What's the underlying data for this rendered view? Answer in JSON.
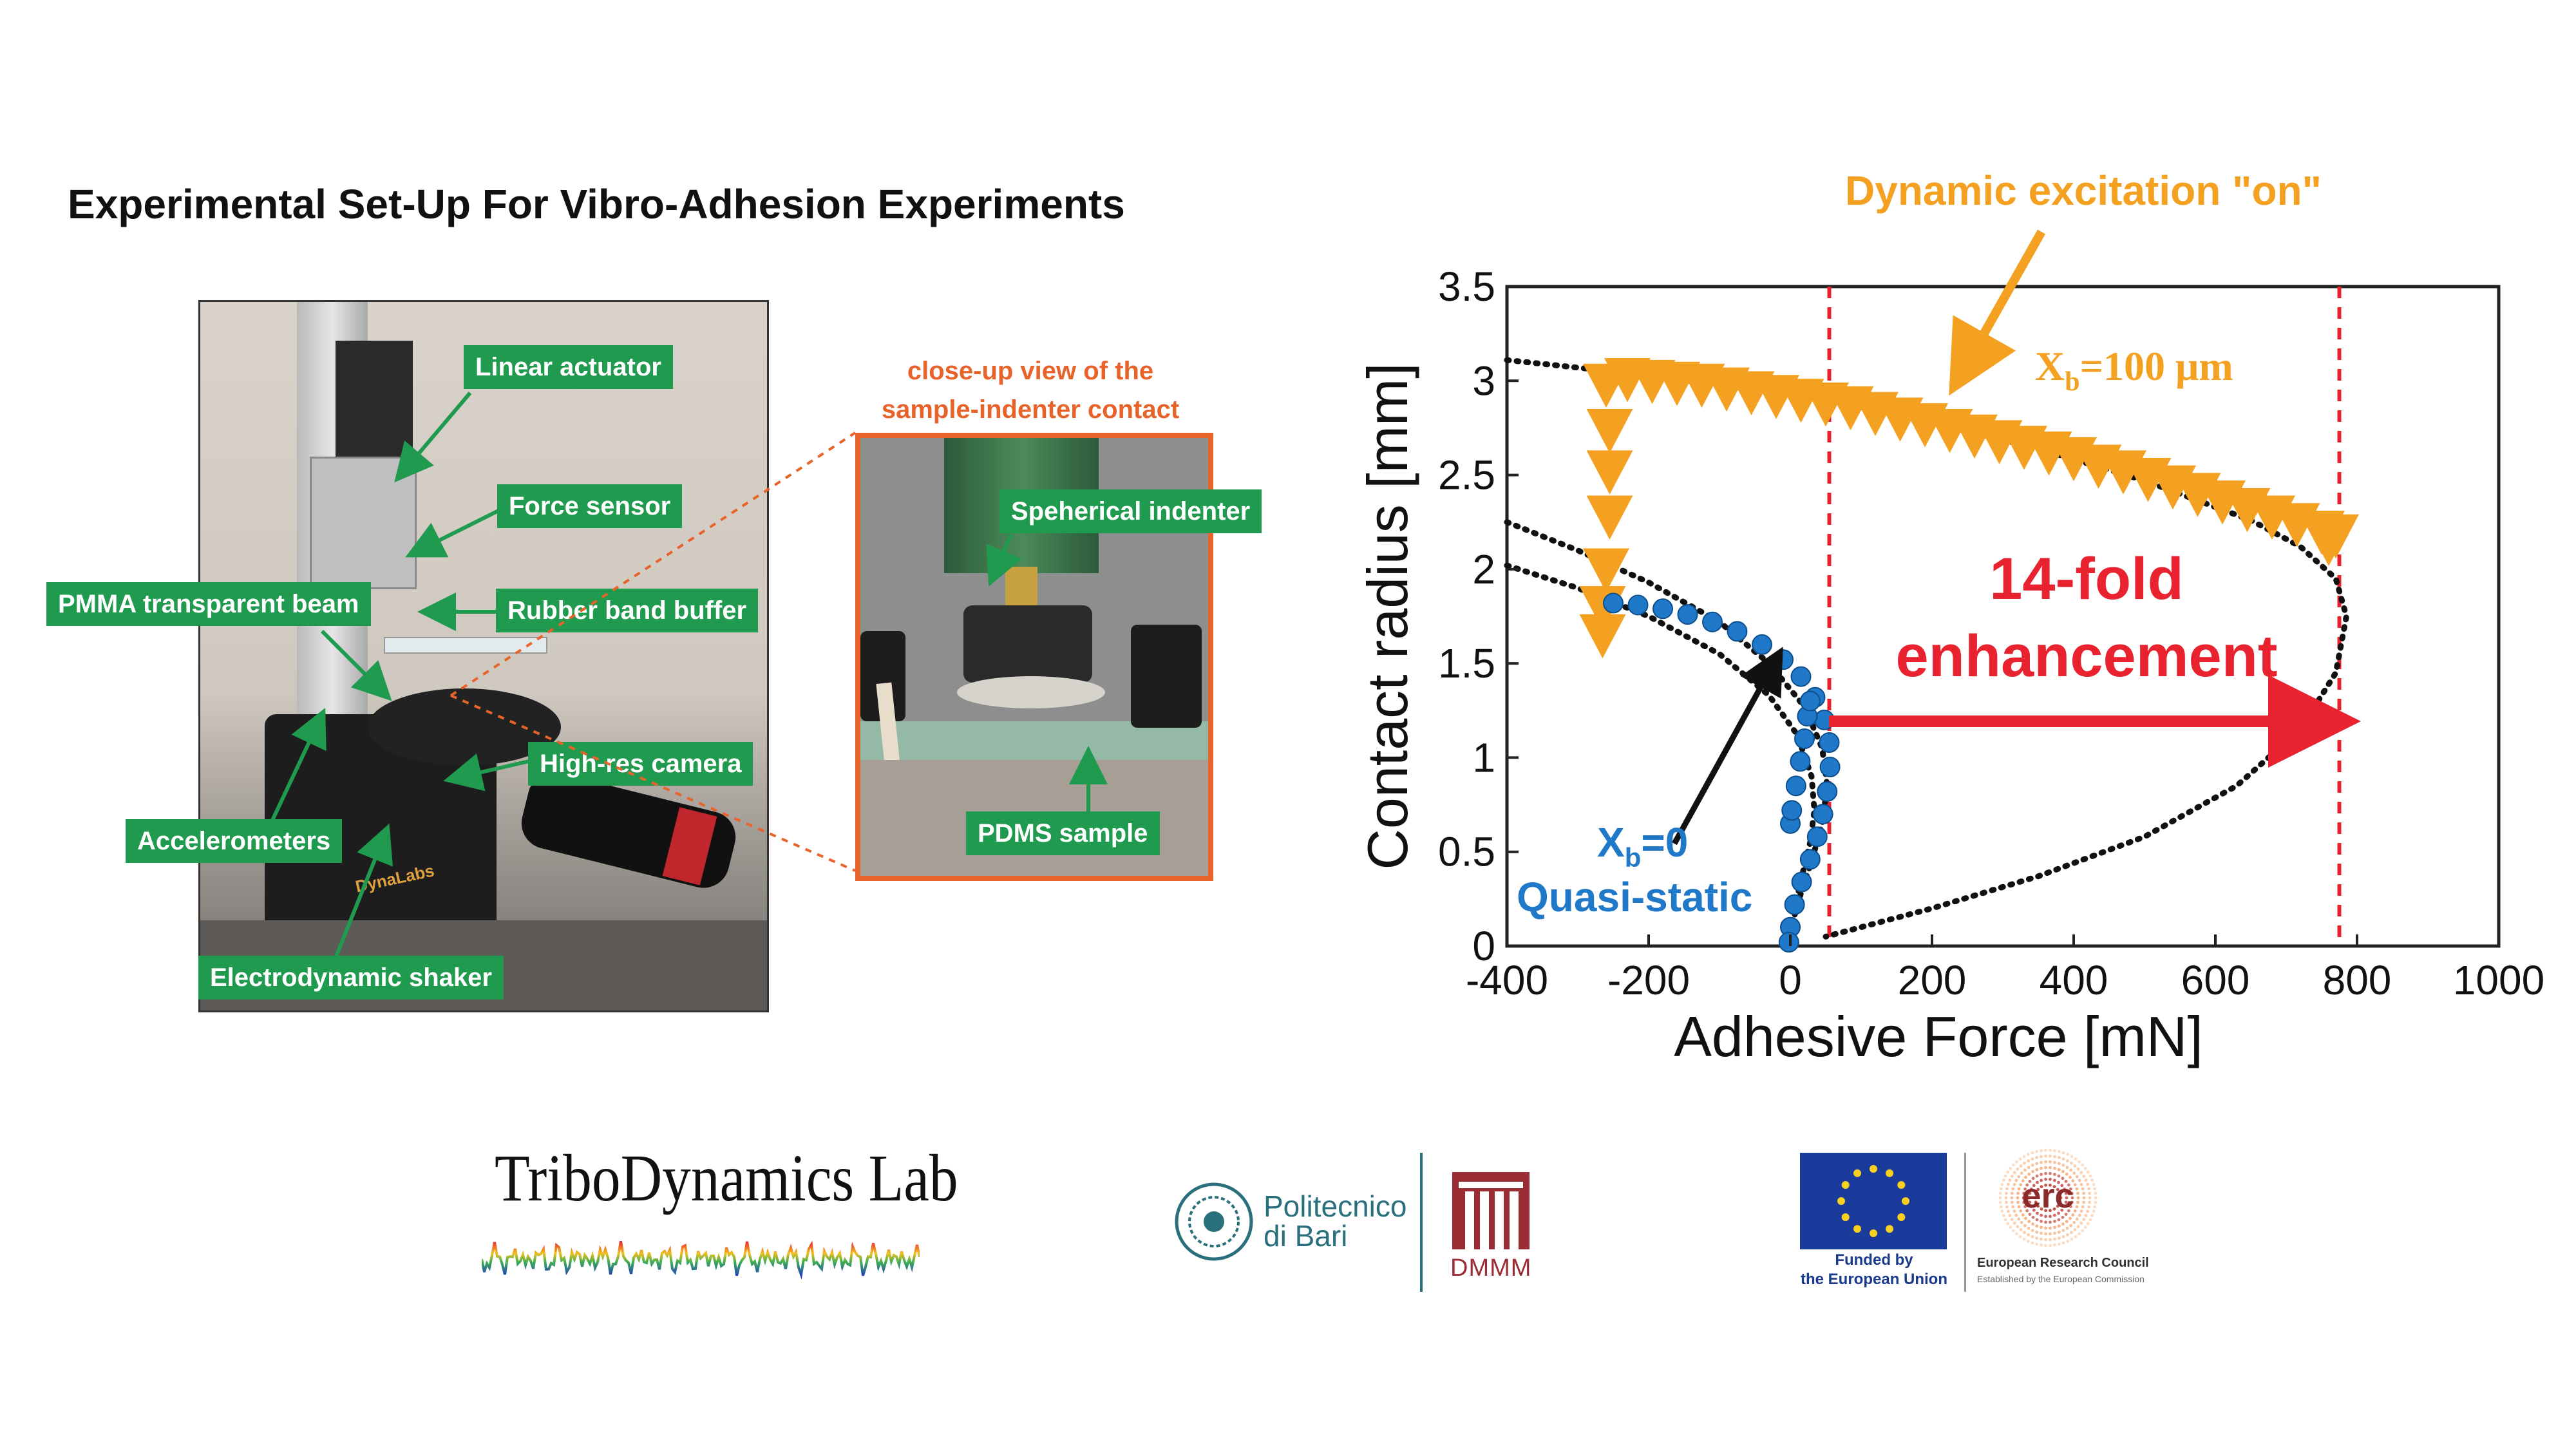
{
  "title": "Experimental Set-Up For Vibro-Adhesion Experiments",
  "photo": {
    "labels": {
      "linear_actuator": "Linear actuator",
      "force_sensor": "Force sensor",
      "pmma_beam": "PMMA transparent beam",
      "rubber_band": "Rubber band buffer",
      "high_res_camera": "High-res camera",
      "accelerometers": "Accelerometers",
      "shaker": "Electrodynamic shaker"
    },
    "shaker_brand": "DynaLabs"
  },
  "closeup": {
    "caption_line1": "close-up view of the",
    "caption_line2": "sample-indenter contact",
    "indenter_label": "Speherical indenter",
    "sample_label": "PDMS sample"
  },
  "chart_data": {
    "type": "scatter",
    "xlabel": "Adhesive Force [mN]",
    "ylabel": "Contact radius [mm]",
    "xlim": [
      -400,
      1000
    ],
    "ylim": [
      0,
      3.5
    ],
    "xticks": [
      "-400",
      "-200",
      "0",
      "200",
      "400",
      "600",
      "800",
      "1000"
    ],
    "yticks": [
      "0",
      "0.5",
      "1",
      "1.5",
      "2",
      "2.5",
      "3",
      "3.5"
    ],
    "vlines": [
      55,
      775
    ],
    "series": [
      {
        "marker": "triangle-down",
        "color": "#f4a020",
        "points": [
          [
            -260,
            2.98
          ],
          [
            -230,
            3.01
          ],
          [
            -195,
            3.0
          ],
          [
            -160,
            2.99
          ],
          [
            -125,
            2.98
          ],
          [
            -90,
            2.96
          ],
          [
            -55,
            2.94
          ],
          [
            -20,
            2.92
          ],
          [
            15,
            2.9
          ],
          [
            50,
            2.88
          ],
          [
            85,
            2.86
          ],
          [
            120,
            2.83
          ],
          [
            155,
            2.8
          ],
          [
            190,
            2.77
          ],
          [
            225,
            2.74
          ],
          [
            260,
            2.71
          ],
          [
            295,
            2.68
          ],
          [
            330,
            2.65
          ],
          [
            365,
            2.62
          ],
          [
            400,
            2.59
          ],
          [
            435,
            2.55
          ],
          [
            470,
            2.52
          ],
          [
            505,
            2.48
          ],
          [
            540,
            2.44
          ],
          [
            575,
            2.4
          ],
          [
            610,
            2.36
          ],
          [
            645,
            2.32
          ],
          [
            680,
            2.28
          ],
          [
            715,
            2.24
          ],
          [
            750,
            2.2
          ],
          [
            770,
            2.18
          ],
          [
            760,
            2.14
          ],
          [
            -255,
            2.74
          ],
          [
            -255,
            2.52
          ],
          [
            -255,
            2.28
          ],
          [
            -260,
            2.0
          ],
          [
            -265,
            1.8
          ],
          [
            -265,
            1.65
          ]
        ]
      },
      {
        "marker": "circle",
        "color": "#1f78c8",
        "points": [
          [
            -250,
            1.82
          ],
          [
            -215,
            1.81
          ],
          [
            -180,
            1.79
          ],
          [
            -145,
            1.76
          ],
          [
            -110,
            1.72
          ],
          [
            -75,
            1.67
          ],
          [
            -40,
            1.6
          ],
          [
            -10,
            1.52
          ],
          [
            15,
            1.43
          ],
          [
            35,
            1.32
          ],
          [
            48,
            1.2
          ],
          [
            55,
            1.08
          ],
          [
            56,
            0.95
          ],
          [
            52,
            0.82
          ],
          [
            46,
            0.7
          ],
          [
            38,
            0.58
          ],
          [
            28,
            0.46
          ],
          [
            16,
            0.34
          ],
          [
            6,
            0.22
          ],
          [
            0,
            0.1
          ],
          [
            -2,
            0.02
          ],
          [
            0,
            0.65
          ],
          [
            2,
            0.72
          ],
          [
            8,
            0.85
          ],
          [
            14,
            0.98
          ],
          [
            20,
            1.1
          ],
          [
            24,
            1.22
          ],
          [
            28,
            1.3
          ]
        ]
      }
    ],
    "fit_curves": [
      {
        "style": "dotted",
        "color": "#111",
        "points": [
          [
            -400,
            3.11
          ],
          [
            -250,
            3.05
          ],
          [
            -100,
            2.98
          ],
          [
            50,
            2.9
          ],
          [
            200,
            2.78
          ],
          [
            350,
            2.64
          ],
          [
            500,
            2.47
          ],
          [
            650,
            2.26
          ],
          [
            720,
            2.12
          ],
          [
            770,
            1.95
          ],
          [
            785,
            1.75
          ],
          [
            770,
            1.45
          ],
          [
            720,
            1.15
          ],
          [
            630,
            0.85
          ],
          [
            500,
            0.58
          ],
          [
            350,
            0.37
          ],
          [
            200,
            0.2
          ],
          [
            100,
            0.1
          ],
          [
            50,
            0.05
          ]
        ]
      },
      {
        "style": "dotted",
        "color": "#111",
        "points": [
          [
            -400,
            2.25
          ],
          [
            -300,
            2.1
          ],
          [
            -200,
            1.93
          ],
          [
            -100,
            1.72
          ],
          [
            -30,
            1.5
          ],
          [
            20,
            1.27
          ],
          [
            45,
            1.05
          ],
          [
            52,
            0.85
          ],
          [
            45,
            0.65
          ],
          [
            30,
            0.45
          ],
          [
            15,
            0.28
          ],
          [
            5,
            0.15
          ],
          [
            0,
            0.02
          ]
        ]
      },
      {
        "style": "dotted",
        "color": "#111",
        "points": [
          [
            -400,
            2.02
          ],
          [
            -300,
            1.9
          ],
          [
            -200,
            1.75
          ],
          [
            -100,
            1.55
          ],
          [
            -30,
            1.33
          ],
          [
            10,
            1.12
          ],
          [
            30,
            0.9
          ],
          [
            34,
            0.72
          ],
          [
            28,
            0.55
          ],
          [
            15,
            0.35
          ],
          [
            5,
            0.18
          ]
        ]
      }
    ],
    "annotations": {
      "dynamic_on": "Dynamic excitation \"on\"",
      "xb_dyn_base": "X",
      "xb_sub": "b",
      "xb_dyn_value": "=100 μm",
      "xb_zero_value": "=0",
      "quasi_static": "Quasi-static",
      "fold_line1": "14-fold",
      "fold_line2": "enhancement"
    }
  },
  "logos": {
    "tribo": "TriboDynamics Lab",
    "polito_line1": "Politecnico",
    "polito_line2": "di Bari",
    "dmmm": "DMMM",
    "eu_line1": "Funded by",
    "eu_line2": "the European Union",
    "erc": "erc",
    "erc_name": "European Research Council",
    "erc_sub": "Established by the European Commission"
  }
}
